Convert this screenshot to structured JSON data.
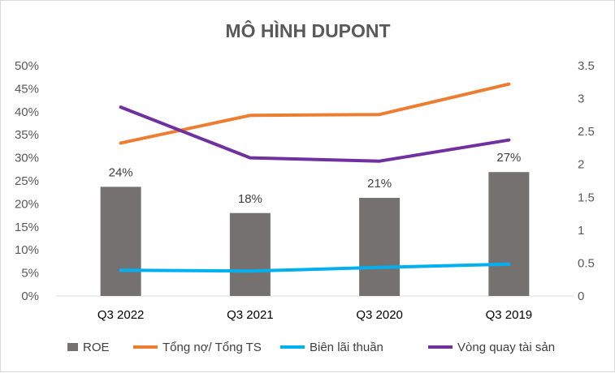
{
  "chart_data": {
    "type": "bar",
    "title": "MÔ HÌNH DUPONT",
    "categories": [
      "Q3 2022",
      "Q3 2021",
      "Q3 2020",
      "Q3 2019"
    ],
    "y_left": {
      "ylim": [
        0,
        0.5
      ],
      "ticks": [
        0,
        0.05,
        0.1,
        0.15,
        0.2,
        0.25,
        0.3,
        0.35,
        0.4,
        0.45,
        0.5
      ],
      "tick_labels": [
        "0%",
        "5%",
        "10%",
        "15%",
        "20%",
        "25%",
        "30%",
        "35%",
        "40%",
        "45%",
        "50%"
      ]
    },
    "y_right": {
      "ylim": [
        0,
        3.5
      ],
      "ticks": [
        0,
        0.5,
        1,
        1.5,
        2,
        2.5,
        3,
        3.5
      ],
      "tick_labels": [
        "0",
        "0.5",
        "1",
        "1.5",
        "2",
        "2.5",
        "3",
        "3.5"
      ]
    },
    "series": [
      {
        "name": "ROE",
        "kind": "bar",
        "axis": "left",
        "color": "#767171",
        "values": [
          0.237,
          0.18,
          0.213,
          0.269
        ],
        "labels": [
          "24%",
          "18%",
          "21%",
          "27%"
        ]
      },
      {
        "name": "Tổng nợ/ Tổng TS",
        "kind": "line",
        "axis": "left",
        "color": "#ed7d31",
        "values": [
          0.332,
          0.392,
          0.394,
          0.46
        ]
      },
      {
        "name": "Biên lãi thuần",
        "kind": "line",
        "axis": "left",
        "color": "#00b0f0",
        "values": [
          0.056,
          0.054,
          0.062,
          0.069
        ]
      },
      {
        "name": "Vòng quay tài sản",
        "kind": "line",
        "axis": "right",
        "color": "#7030a0",
        "values": [
          2.87,
          2.1,
          2.05,
          2.37
        ]
      }
    ],
    "legend_position": "bottom",
    "grid": false
  }
}
